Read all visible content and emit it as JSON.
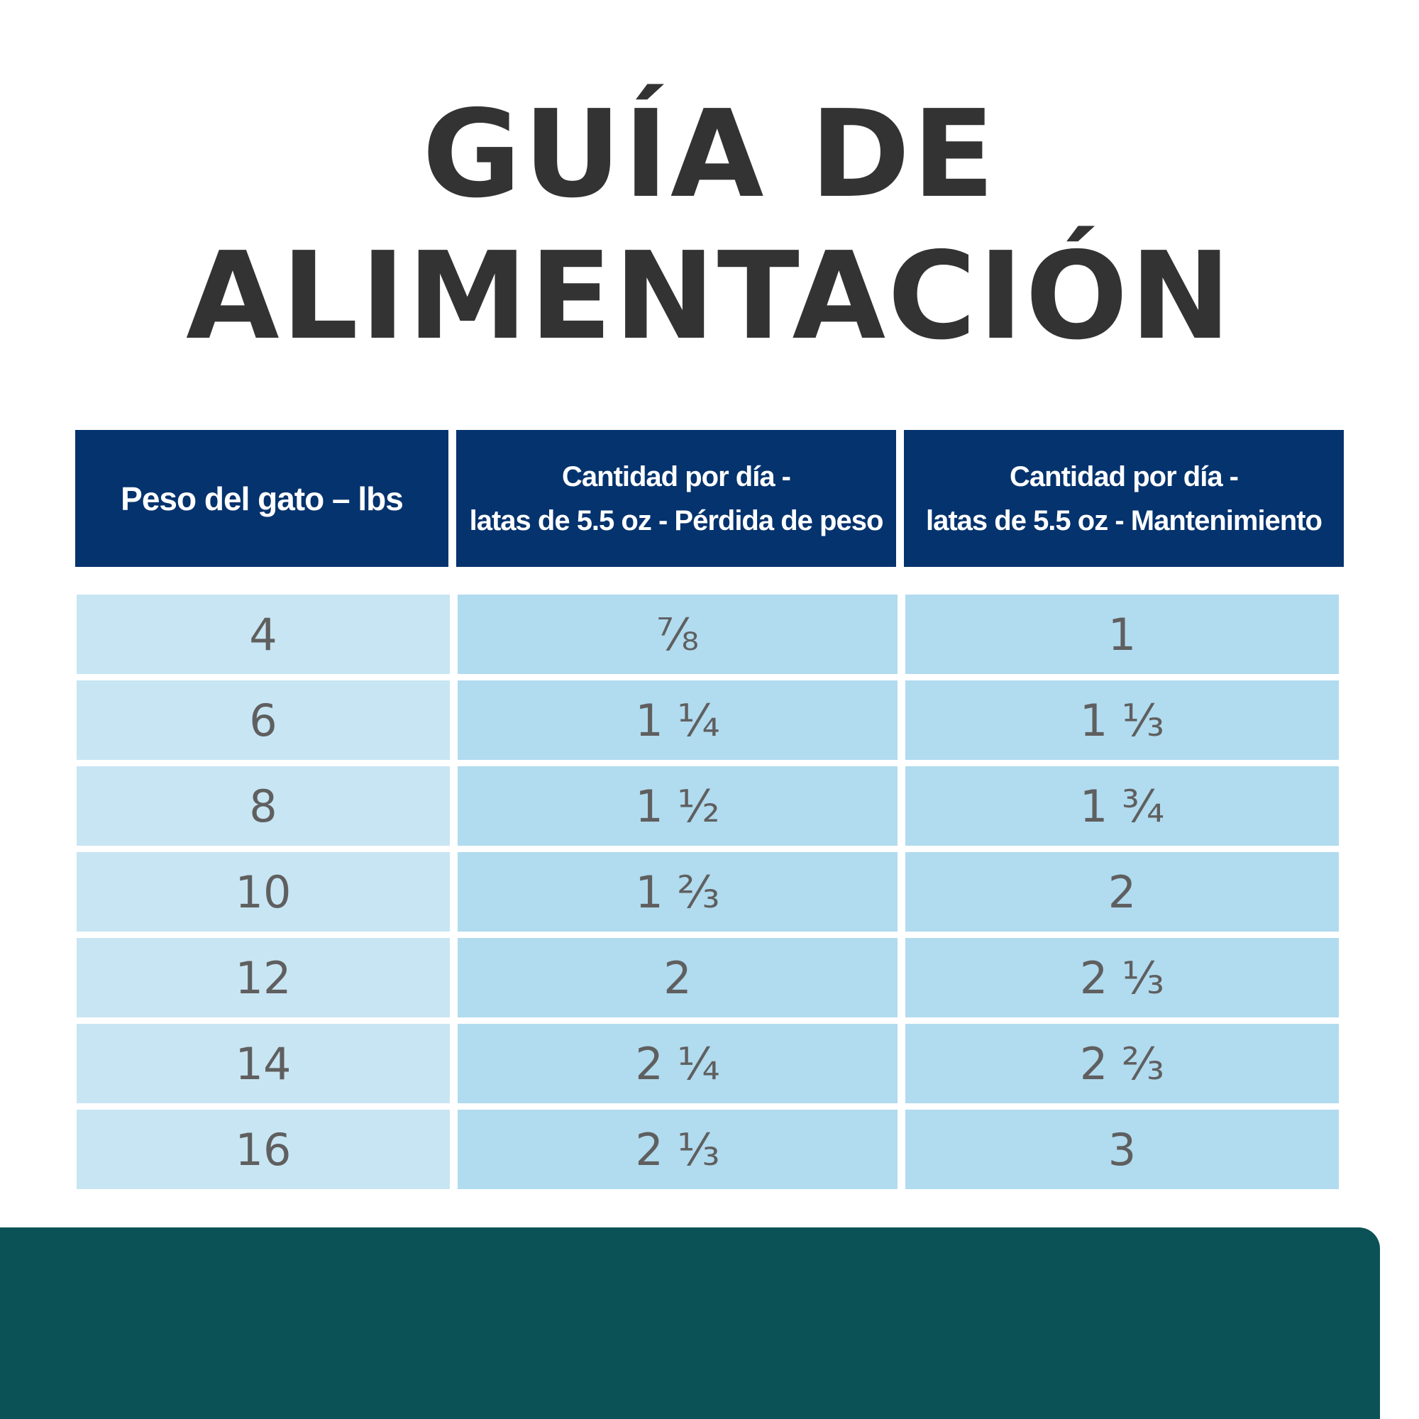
{
  "title": {
    "line1": "GUÍA DE",
    "line2": "ALIMENTACIÓN"
  },
  "colors": {
    "header_bg": "#04336e",
    "row_col1_bg": "#c8e5f3",
    "row_cols_bg": "#b1dbef",
    "footer_bg": "#0b5256",
    "title_text": "#333333",
    "cell_text": "#5f5f5f"
  },
  "table": {
    "headers": {
      "col1": "Peso del gato – lbs",
      "col2_line1": "Cantidad por día -",
      "col2_line2": "latas de 5.5 oz - Pérdida de peso",
      "col3_line1": "Cantidad por día -",
      "col3_line2": "latas de 5.5 oz - Mantenimiento"
    },
    "rows": [
      {
        "weight": "4",
        "loss": "⅞",
        "maintenance": "1"
      },
      {
        "weight": "6",
        "loss": "1 ¼",
        "maintenance": "1 ⅓"
      },
      {
        "weight": "8",
        "loss": "1 ½",
        "maintenance": "1 ¾"
      },
      {
        "weight": "10",
        "loss": "1 ⅔",
        "maintenance": "2"
      },
      {
        "weight": "12",
        "loss": "2",
        "maintenance": "2 ⅓"
      },
      {
        "weight": "14",
        "loss": "2 ¼",
        "maintenance": "2 ⅔"
      },
      {
        "weight": "16",
        "loss": "2 ⅓",
        "maintenance": "3"
      }
    ]
  }
}
